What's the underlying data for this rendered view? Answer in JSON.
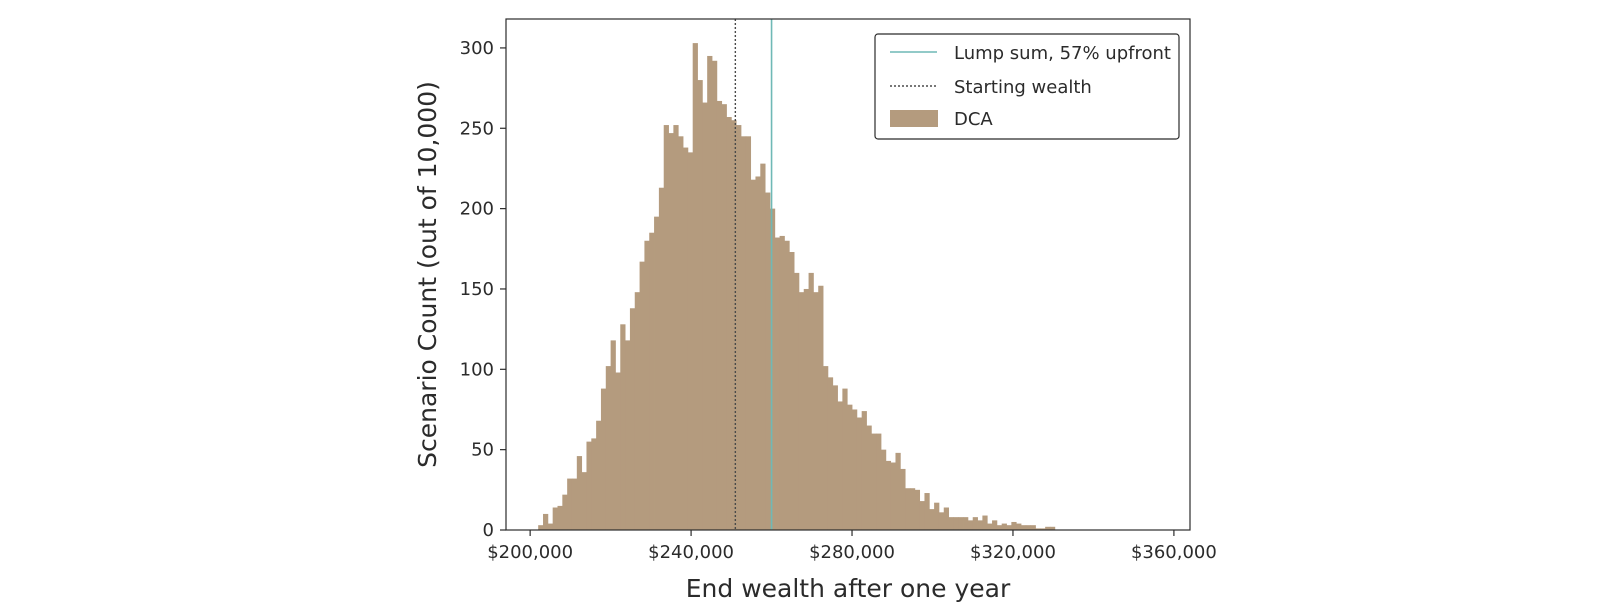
{
  "chart_data": {
    "type": "bar",
    "xlabel": "End wealth after one year",
    "ylabel": "Scenario Count (out of 10,000)",
    "xlim": [
      194000,
      364000
    ],
    "ylim": [
      0,
      318
    ],
    "xticks": [
      200000,
      240000,
      280000,
      320000,
      360000
    ],
    "xtick_labels": [
      "$200,000",
      "$240,000",
      "$280,000",
      "$320,000",
      "$360,000"
    ],
    "yticks": [
      0,
      50,
      100,
      150,
      200,
      250,
      300
    ],
    "ytick_labels": [
      "0",
      "50",
      "100",
      "150",
      "200",
      "250",
      "300"
    ],
    "grid": false,
    "legend_position": "top-right",
    "bin_start": 202000,
    "bin_width": 1200,
    "series": [
      {
        "name": "DCA",
        "kind": "histogram",
        "color": "#b49b7e",
        "values": [
          3,
          10,
          4,
          14,
          15,
          22,
          32,
          32,
          46,
          36,
          55,
          57,
          68,
          88,
          102,
          118,
          98,
          128,
          118,
          138,
          148,
          167,
          180,
          185,
          195,
          213,
          252,
          247,
          252,
          245,
          238,
          235,
          303,
          280,
          266,
          295,
          292,
          267,
          265,
          257,
          255,
          252,
          245,
          245,
          218,
          220,
          228,
          210,
          200,
          182,
          183,
          180,
          173,
          160,
          148,
          150,
          160,
          148,
          152,
          102,
          95,
          90,
          80,
          88,
          78,
          75,
          70,
          74,
          65,
          60,
          60,
          50,
          43,
          42,
          48,
          38,
          26,
          26,
          25,
          18,
          23,
          13,
          17,
          11,
          14,
          8,
          8,
          8,
          8,
          6,
          8,
          6,
          9,
          4,
          6,
          3,
          4,
          3,
          5,
          4,
          3,
          3,
          3,
          1,
          1,
          2,
          2
        ]
      },
      {
        "name": "Lump sum, 57% upfront",
        "kind": "vline",
        "x": 260000,
        "color": "#6fb9b6"
      },
      {
        "name": "Starting wealth",
        "kind": "vline",
        "x": 251000,
        "color": "#4a4a4a",
        "dashed": true
      }
    ]
  }
}
